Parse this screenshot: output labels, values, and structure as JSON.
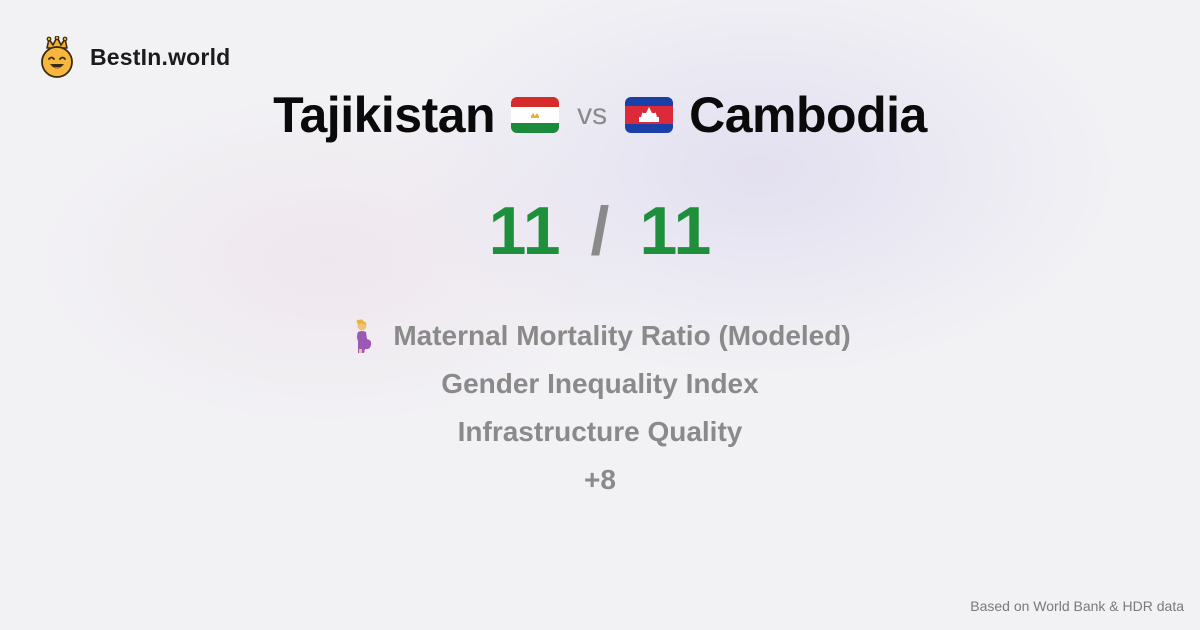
{
  "brand": {
    "name": "BestIn.world",
    "icon": "crown-smiley-icon"
  },
  "comparison": {
    "country_a": {
      "name": "Tajikistan",
      "flag": "tajikistan-flag-icon"
    },
    "vs_label": "vs",
    "country_b": {
      "name": "Cambodia",
      "flag": "cambodia-flag-icon"
    }
  },
  "score": {
    "a": "11",
    "separator": "/",
    "b": "11",
    "color": "#1e8f3b"
  },
  "metrics": [
    {
      "label": "Maternal Mortality Ratio (Modeled)",
      "icon": "pregnant-woman-icon"
    },
    {
      "label": "Gender Inequality Index"
    },
    {
      "label": "Infrastructure Quality"
    },
    {
      "label": "+8"
    }
  ],
  "footer": {
    "source": "Based on World Bank & HDR data"
  }
}
